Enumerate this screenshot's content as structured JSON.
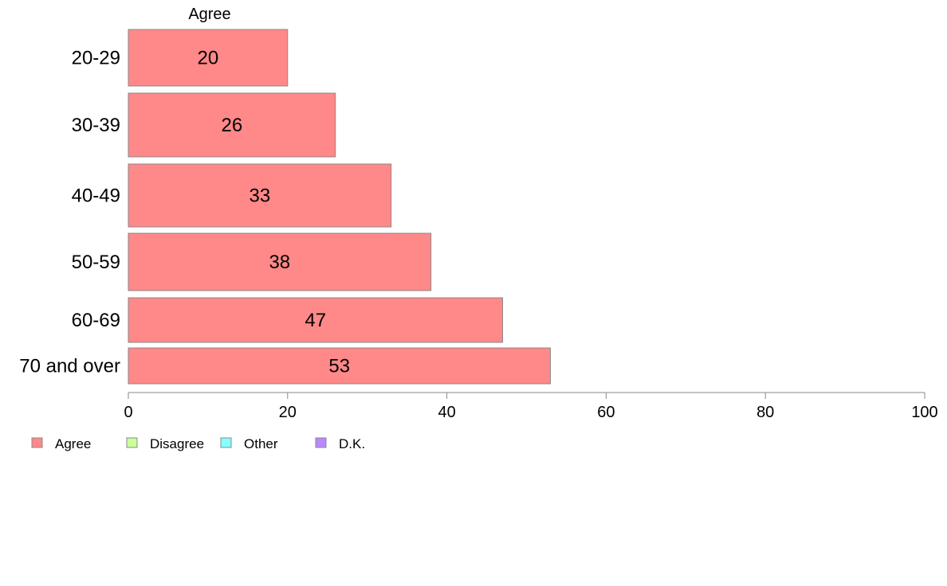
{
  "chart_data": {
    "type": "bar",
    "orientation": "horizontal",
    "categories": [
      "20-29",
      "30-39",
      "40-49",
      "50-59",
      "60-69",
      "70 and over"
    ],
    "series": [
      {
        "name": "Agree",
        "values": [
          20,
          26,
          33,
          38,
          47,
          53
        ],
        "color": "#ff8888"
      }
    ],
    "series_header": "Agree",
    "xlim": [
      0,
      100
    ],
    "xticks": [
      0,
      20,
      40,
      60,
      80,
      100
    ],
    "grid": false,
    "legend": {
      "placement": "bottom-left",
      "items": [
        {
          "label": "Agree",
          "color": "#ff8888"
        },
        {
          "label": "Disagree",
          "color": "#ccff99"
        },
        {
          "label": "Other",
          "color": "#88ffff"
        },
        {
          "label": "D.K.",
          "color": "#bb88ff"
        }
      ]
    }
  }
}
